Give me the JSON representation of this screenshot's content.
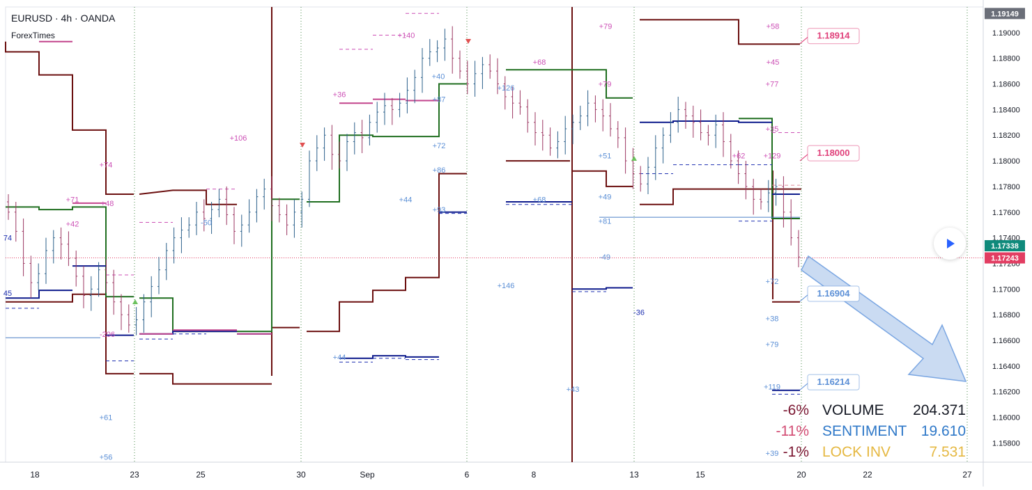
{
  "header": {
    "symbol_line": "EURUSD · 4h · OANDA",
    "source": "ForexTimes"
  },
  "colors": {
    "maroon": "#6b0f0f",
    "green": "#1f6e1f",
    "navy": "#0d1a8c",
    "pink": "#cc3d8f",
    "bull": "#2a5f8a",
    "bear": "#9b3560",
    "grid": "#e4e7ef",
    "axis_text": "#131722"
  },
  "chart_data": {
    "type": "candlestick",
    "title": "EURUSD · 4h · OANDA",
    "y_range": [
      1.1565,
      1.192
    ],
    "x_range": [
      0,
      1487
    ],
    "x_ticks": [
      {
        "v": 50,
        "label": "18"
      },
      {
        "v": 193,
        "label": "23"
      },
      {
        "v": 288,
        "label": "25"
      },
      {
        "v": 432,
        "label": "30"
      },
      {
        "v": 527,
        "label": "Sep"
      },
      {
        "v": 670,
        "label": "6"
      },
      {
        "v": 766,
        "label": "8"
      },
      {
        "v": 910,
        "label": "13"
      },
      {
        "v": 1005,
        "label": "15"
      },
      {
        "v": 1150,
        "label": "20"
      },
      {
        "v": 1245,
        "label": "22"
      },
      {
        "v": 1388,
        "label": "27"
      }
    ],
    "y_ticks": [
      1.158,
      1.16,
      1.162,
      1.164,
      1.166,
      1.168,
      1.17,
      1.172,
      1.174,
      1.176,
      1.178,
      1.18,
      1.182,
      1.184,
      1.186,
      1.188,
      1.19
    ],
    "price_badges": [
      {
        "label": "1.19149",
        "value": 1.19149,
        "color": "#6a6e78"
      },
      {
        "label": "1.17338",
        "value": 1.17338,
        "color": "#0f8a7b"
      },
      {
        "label": "1.17243",
        "value": 1.17243,
        "color": "#e23d62"
      }
    ],
    "level_callouts": [
      {
        "label": "1.18914",
        "value": 1.18914,
        "color": "#e0407a"
      },
      {
        "label": "1.18000",
        "value": 1.18,
        "color": "#e0407a"
      },
      {
        "label": "1.16904",
        "value": 1.16904,
        "color": "#5b8fd6"
      },
      {
        "label": "1.16214",
        "value": 1.16214,
        "color": "#5b8fd6"
      }
    ],
    "candles_close_sample": [
      1.176,
      1.1745,
      1.172,
      1.1705,
      1.1712,
      1.173,
      1.174,
      1.1735,
      1.1724,
      1.171,
      1.1695,
      1.17,
      1.1715,
      1.1705,
      1.169,
      1.168,
      1.1672,
      1.1676,
      1.169,
      1.1702,
      1.1715,
      1.173,
      1.174,
      1.1746,
      1.175,
      1.176,
      1.1755,
      1.1762,
      1.177,
      1.1758,
      1.1745,
      1.175,
      1.176,
      1.1772,
      1.1778,
      1.1765,
      1.1758,
      1.175,
      1.176,
      1.177,
      1.18,
      1.181,
      1.182,
      1.1805,
      1.18,
      1.1815,
      1.1822,
      1.1818,
      1.183,
      1.1838,
      1.1843,
      1.184,
      1.1845,
      1.1855,
      1.1865,
      1.188,
      1.1885,
      1.1888,
      1.1895,
      1.188,
      1.187,
      1.186,
      1.1868,
      1.1875,
      1.187,
      1.186,
      1.185,
      1.1845,
      1.1842,
      1.183,
      1.1822,
      1.182,
      1.181,
      1.1815,
      1.1825,
      1.183,
      1.1835,
      1.1845,
      1.184,
      1.1835,
      1.1825,
      1.1818,
      1.18,
      1.179,
      1.1782,
      1.1795,
      1.181,
      1.182,
      1.183,
      1.184,
      1.1835,
      1.183,
      1.1822,
      1.182,
      1.1828,
      1.1815,
      1.18,
      1.179,
      1.178,
      1.177,
      1.1768,
      1.1775,
      1.178,
      1.176,
      1.174,
      1.1725
    ],
    "annotations": [
      {
        "t": "+140",
        "v": 1.1898,
        "x": 583,
        "c": "#cc4fb5"
      },
      {
        "t": "+79",
        "v": 1.1905,
        "x": 869,
        "c": "#cc4fb5"
      },
      {
        "t": "+58",
        "v": 1.1905,
        "x": 1109,
        "c": "#cc4fb5"
      },
      {
        "t": "+45",
        "v": 1.1877,
        "x": 1109,
        "c": "#cc4fb5"
      },
      {
        "t": "+68",
        "v": 1.1877,
        "x": 774,
        "c": "#cc4fb5"
      },
      {
        "t": "+40",
        "v": 1.1866,
        "x": 629,
        "c": "#5b8fd6"
      },
      {
        "t": "+126",
        "v": 1.1857,
        "x": 726,
        "c": "#5b8fd6"
      },
      {
        "t": "+79",
        "v": 1.186,
        "x": 868,
        "c": "#cc4fb5"
      },
      {
        "t": "+77",
        "v": 1.186,
        "x": 1108,
        "c": "#cc4fb5"
      },
      {
        "t": "+36",
        "v": 1.1852,
        "x": 487,
        "c": "#cc4fb5"
      },
      {
        "t": "+87",
        "v": 1.1848,
        "x": 630,
        "c": "#5b8fd6"
      },
      {
        "t": "+35",
        "v": 1.1825,
        "x": 1108,
        "c": "#cc4fb5"
      },
      {
        "t": "+106",
        "v": 1.1818,
        "x": 342,
        "c": "#cc4fb5"
      },
      {
        "t": "+72",
        "v": 1.1812,
        "x": 630,
        "c": "#5b8fd6"
      },
      {
        "t": "+51",
        "v": 1.1804,
        "x": 868,
        "c": "#5b8fd6"
      },
      {
        "t": "+62",
        "v": 1.1804,
        "x": 1060,
        "c": "#cc4fb5"
      },
      {
        "t": "+129",
        "v": 1.1804,
        "x": 1108,
        "c": "#cc4fb5"
      },
      {
        "t": "+74",
        "v": 1.1797,
        "x": 152,
        "c": "#cc4fb5"
      },
      {
        "t": "+86",
        "v": 1.1793,
        "x": 630,
        "c": "#5b8fd6"
      },
      {
        "t": "+49",
        "v": 1.1772,
        "x": 868,
        "c": "#5b8fd6"
      },
      {
        "t": "+68",
        "v": 1.177,
        "x": 774,
        "c": "#5b8fd6"
      },
      {
        "t": "+71",
        "v": 1.177,
        "x": 104,
        "c": "#cc4fb5"
      },
      {
        "t": "+48",
        "v": 1.1767,
        "x": 154,
        "c": "#cc4fb5"
      },
      {
        "t": "+44",
        "v": 1.177,
        "x": 582,
        "c": "#5b8fd6"
      },
      {
        "t": "+93",
        "v": 1.1762,
        "x": 630,
        "c": "#5b8fd6"
      },
      {
        "t": "+81",
        "v": 1.1753,
        "x": 868,
        "c": "#5b8fd6"
      },
      {
        "t": "+42",
        "v": 1.1751,
        "x": 104,
        "c": "#cc4fb5"
      },
      {
        "t": "-50",
        "v": 1.1752,
        "x": 296,
        "c": "#5b8fd6"
      },
      {
        "t": "74",
        "v": 1.174,
        "x": 11,
        "c": "#1d2fb0"
      },
      {
        "t": "-49",
        "v": 1.1725,
        "x": 868,
        "c": "#5b8fd6"
      },
      {
        "t": "+146",
        "v": 1.1703,
        "x": 726,
        "c": "#5b8fd6"
      },
      {
        "t": "+72",
        "v": 1.1706,
        "x": 1108,
        "c": "#5b8fd6"
      },
      {
        "t": "45",
        "v": 1.1697,
        "x": 11,
        "c": "#1d2fb0"
      },
      {
        "t": "-36",
        "v": 1.1682,
        "x": 917,
        "c": "#1d2fb0"
      },
      {
        "t": "+38",
        "v": 1.1677,
        "x": 1108,
        "c": "#5b8fd6"
      },
      {
        "t": "-206",
        "v": 1.1665,
        "x": 154,
        "c": "#cc4fb5"
      },
      {
        "t": "+79",
        "v": 1.1657,
        "x": 1108,
        "c": "#5b8fd6"
      },
      {
        "t": "+44",
        "v": 1.1647,
        "x": 487,
        "c": "#5b8fd6"
      },
      {
        "t": "+43",
        "v": 1.1622,
        "x": 822,
        "c": "#5b8fd6"
      },
      {
        "t": "+119",
        "v": 1.1624,
        "x": 1108,
        "c": "#5b8fd6"
      },
      {
        "t": "+61",
        "v": 1.16,
        "x": 152,
        "c": "#5b8fd6"
      },
      {
        "t": "+39",
        "v": 1.1572,
        "x": 1108,
        "c": "#5b8fd6"
      },
      {
        "t": "+56",
        "v": 1.1569,
        "x": 152,
        "c": "#5b8fd6"
      }
    ]
  },
  "stats_panel": [
    {
      "pct": "-6%",
      "name": "VOLUME",
      "value": "204.371",
      "pct_color": "#7a1530",
      "text_color": "#131722"
    },
    {
      "pct": "-11%",
      "name": "SENTIMENT",
      "value": "19.610",
      "pct_color": "#d24a72",
      "text_color": "#2e78c8"
    },
    {
      "pct": "-1%",
      "name": "LOCK INV",
      "value": "7.531",
      "pct_color": "#7a1530",
      "text_color": "#e5b842"
    }
  ],
  "play_button": {
    "icon": "play-icon"
  }
}
